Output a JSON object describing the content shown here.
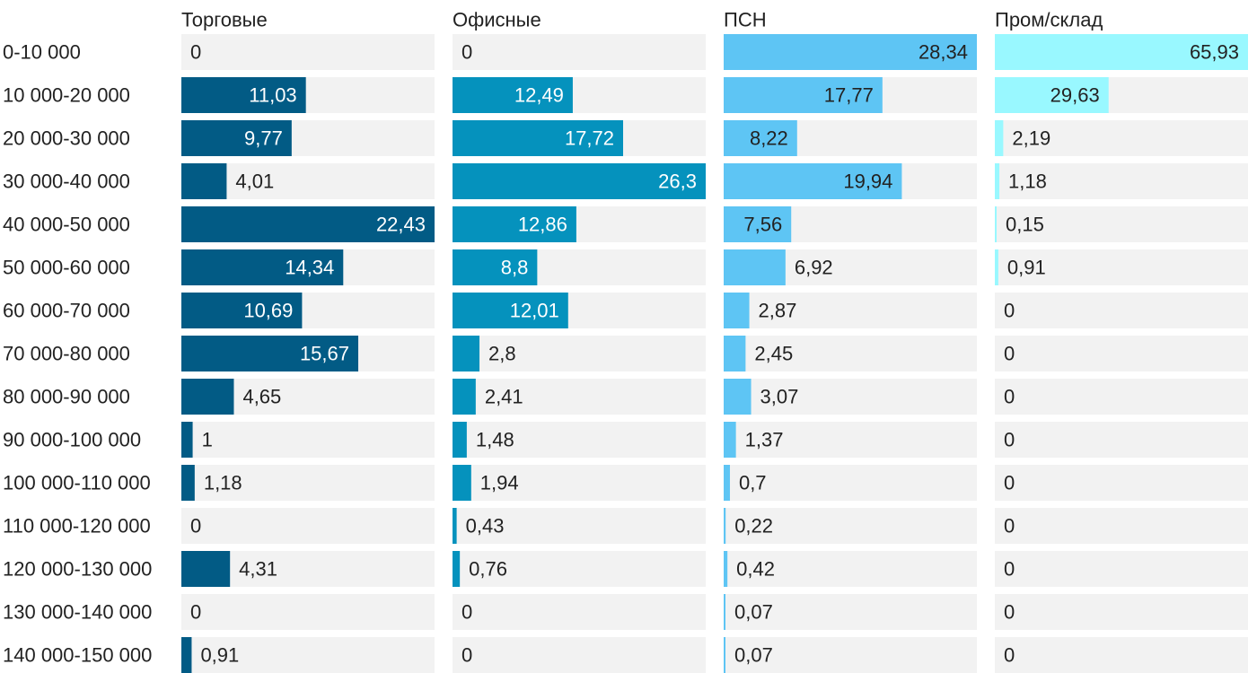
{
  "chart_data": {
    "type": "bar",
    "orientation": "horizontal",
    "layout": "small-multiples",
    "categories": [
      "0-10 000",
      "10 000-20 000",
      "20 000-30 000",
      "30 000-40 000",
      "40 000-50 000",
      "50 000-60 000",
      "60 000-70 000",
      "70 000-80 000",
      "80 000-90 000",
      "90 000-100 000",
      "100 000-110 000",
      "110 000-120 000",
      "120 000-130 000",
      "130 000-140 000",
      "140 000-150 000"
    ],
    "series": [
      {
        "name": "Торговые",
        "color": "#025b85",
        "max": 22.43,
        "values": [
          0,
          11.03,
          9.77,
          4.01,
          22.43,
          14.34,
          10.69,
          15.67,
          4.65,
          1,
          1.18,
          0,
          4.31,
          0,
          0.91
        ],
        "labels": [
          "0",
          "11,03",
          "9,77",
          "4,01",
          "22,43",
          "14,34",
          "10,69",
          "15,67",
          "4,65",
          "1",
          "1,18",
          "0",
          "4,31",
          "0",
          "0,91"
        ]
      },
      {
        "name": "Офисные",
        "color": "#0592bd",
        "max": 26.3,
        "values": [
          0,
          12.49,
          17.72,
          26.3,
          12.86,
          8.8,
          12.01,
          2.8,
          2.41,
          1.48,
          1.94,
          0.43,
          0.76,
          0,
          0
        ],
        "labels": [
          "0",
          "12,49",
          "17,72",
          "26,3",
          "12,86",
          "8,8",
          "12,01",
          "2,8",
          "2,41",
          "1,48",
          "1,94",
          "0,43",
          "0,76",
          "0",
          "0"
        ]
      },
      {
        "name": "ПСН",
        "color": "#5ec5f4",
        "max": 28.34,
        "values": [
          28.34,
          17.77,
          8.22,
          19.94,
          7.56,
          6.92,
          2.87,
          2.45,
          3.07,
          1.37,
          0.7,
          0.22,
          0.42,
          0.07,
          0.07
        ],
        "labels": [
          "28,34",
          "17,77",
          "8,22",
          "19,94",
          "7,56",
          "6,92",
          "2,87",
          "2,45",
          "3,07",
          "1,37",
          "0,7",
          "0,22",
          "0,42",
          "0,07",
          "0,07"
        ]
      },
      {
        "name": "Пром/склад",
        "color": "#99f8ff",
        "max": 65.93,
        "values": [
          65.93,
          29.63,
          2.19,
          1.18,
          0.15,
          0.91,
          0,
          0,
          0,
          0,
          0,
          0,
          0,
          0,
          0
        ],
        "labels": [
          "65,93",
          "29,63",
          "2,19",
          "1,18",
          "0,15",
          "0,91",
          "0",
          "0",
          "0",
          "0",
          "0",
          "0",
          "0",
          "0",
          "0"
        ]
      }
    ],
    "track_color": "#f2f2f2",
    "grid": false,
    "legend": "none"
  }
}
